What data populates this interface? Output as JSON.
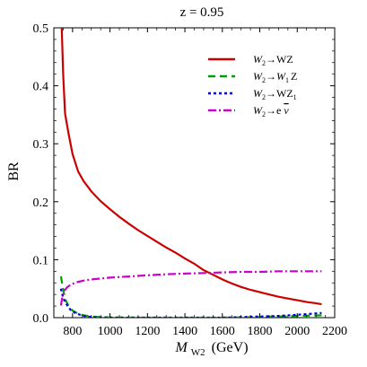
{
  "chart_data": {
    "type": "line",
    "title": "z = 0.95",
    "xlabel": {
      "main": "M",
      "sub": "W2",
      "unit": "(GeV)"
    },
    "ylabel": "BR",
    "xlim": [
      700,
      2200
    ],
    "ylim": [
      0,
      0.5
    ],
    "xticks": [
      800,
      1000,
      1200,
      1400,
      1600,
      1800,
      2000,
      2200
    ],
    "yticks": [
      0.0,
      0.1,
      0.2,
      0.3,
      0.4,
      0.5
    ],
    "grid": false,
    "legend_position": "top-right",
    "series": [
      {
        "name": "W2→WZ",
        "legend": {
          "pre": "W",
          "pre_sub": "2",
          "arrow": "→",
          "post": "WZ",
          "post_sub": ""
        },
        "color": "#cc0000",
        "dash": "solid",
        "points": [
          [
            742,
            0.5
          ],
          [
            750,
            0.42
          ],
          [
            760,
            0.352
          ],
          [
            780,
            0.315
          ],
          [
            800,
            0.282
          ],
          [
            830,
            0.252
          ],
          [
            860,
            0.235
          ],
          [
            900,
            0.218
          ],
          [
            950,
            0.201
          ],
          [
            1000,
            0.187
          ],
          [
            1050,
            0.174
          ],
          [
            1100,
            0.162
          ],
          [
            1150,
            0.151
          ],
          [
            1200,
            0.141
          ],
          [
            1250,
            0.131
          ],
          [
            1300,
            0.121
          ],
          [
            1350,
            0.112
          ],
          [
            1400,
            0.102
          ],
          [
            1450,
            0.093
          ],
          [
            1500,
            0.082
          ],
          [
            1550,
            0.074
          ],
          [
            1600,
            0.066
          ],
          [
            1650,
            0.059
          ],
          [
            1700,
            0.053
          ],
          [
            1750,
            0.048
          ],
          [
            1800,
            0.044
          ],
          [
            1850,
            0.04
          ],
          [
            1900,
            0.036
          ],
          [
            1950,
            0.033
          ],
          [
            2000,
            0.03
          ],
          [
            2050,
            0.027
          ],
          [
            2100,
            0.025
          ],
          [
            2130,
            0.023
          ]
        ]
      },
      {
        "name": "W2→W1Z",
        "legend": {
          "pre": "W",
          "pre_sub": "2",
          "arrow": "→",
          "post": "W",
          "post_sub": "1",
          "tail": "Z"
        },
        "color": "#00a000",
        "dash": "8,5",
        "points": [
          [
            738,
            0.071
          ],
          [
            750,
            0.049
          ],
          [
            760,
            0.032
          ],
          [
            780,
            0.019
          ],
          [
            800,
            0.012
          ],
          [
            830,
            0.007
          ],
          [
            860,
            0.004
          ],
          [
            900,
            0.002
          ],
          [
            950,
            0.001
          ],
          [
            1000,
            0.0005
          ],
          [
            1200,
            0.0
          ],
          [
            1400,
            0.0
          ],
          [
            1600,
            0.0
          ],
          [
            1800,
            0.001
          ],
          [
            1900,
            0.002
          ],
          [
            2000,
            0.003
          ],
          [
            2130,
            0.004
          ]
        ]
      },
      {
        "name": "W2→WZ1",
        "legend": {
          "pre": "W",
          "pre_sub": "2",
          "arrow": "→",
          "post": "WZ",
          "post_sub": "1"
        },
        "color": "#0000dd",
        "dash": "3,3",
        "points": [
          [
            738,
            0.05
          ],
          [
            745,
            0.04
          ],
          [
            755,
            0.03
          ],
          [
            770,
            0.022
          ],
          [
            790,
            0.013
          ],
          [
            820,
            0.007
          ],
          [
            860,
            0.003
          ],
          [
            900,
            0.001
          ],
          [
            1000,
            0.0
          ],
          [
            1200,
            0.0
          ],
          [
            1400,
            0.0
          ],
          [
            1600,
            0.0
          ],
          [
            1700,
            0.001
          ],
          [
            1800,
            0.002
          ],
          [
            1900,
            0.003
          ],
          [
            2000,
            0.005
          ],
          [
            2130,
            0.008
          ]
        ]
      },
      {
        "name": "W2→e ν̄",
        "legend": {
          "pre": "W",
          "pre_sub": "2",
          "arrow": "→",
          "post": "e ",
          "post_bar": "ν"
        },
        "color": "#cc00cc",
        "dash": "9,3,2,3",
        "points": [
          [
            738,
            0.021
          ],
          [
            745,
            0.035
          ],
          [
            755,
            0.046
          ],
          [
            770,
            0.052
          ],
          [
            790,
            0.057
          ],
          [
            820,
            0.061
          ],
          [
            860,
            0.064
          ],
          [
            900,
            0.066
          ],
          [
            1000,
            0.069
          ],
          [
            1100,
            0.071
          ],
          [
            1200,
            0.073
          ],
          [
            1300,
            0.075
          ],
          [
            1400,
            0.076
          ],
          [
            1500,
            0.077
          ],
          [
            1600,
            0.078
          ],
          [
            1700,
            0.079
          ],
          [
            1800,
            0.079
          ],
          [
            1900,
            0.08
          ],
          [
            2000,
            0.08
          ],
          [
            2130,
            0.08
          ]
        ]
      }
    ]
  }
}
